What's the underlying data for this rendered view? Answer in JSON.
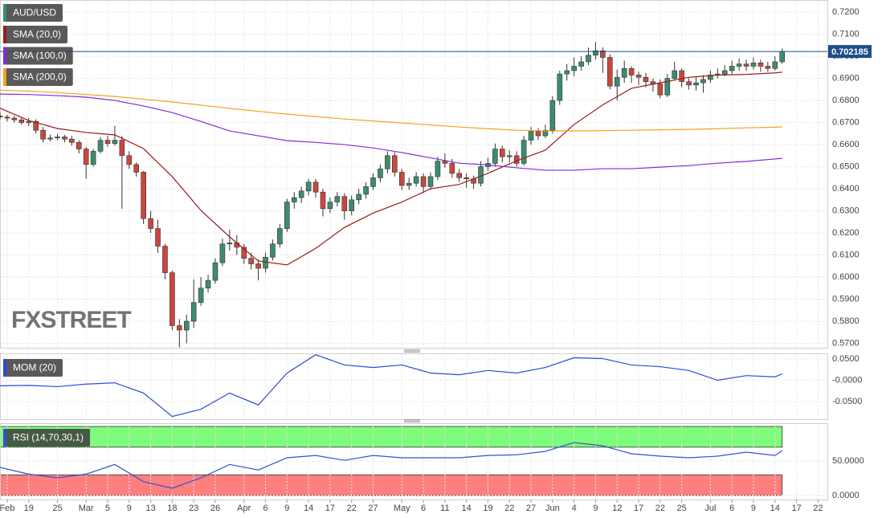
{
  "chart_data": [
    {
      "type": "candlestick",
      "title": "AUD/USD",
      "watermark": "FXSTREET",
      "up_color": "#3d8c6e",
      "down_color": "#c9473d",
      "xlim": [
        0,
        115.3
      ],
      "ylim": [
        0.568,
        0.7255
      ],
      "yticks": [
        {
          "value": 0.57,
          "label": "0.5700"
        },
        {
          "value": 0.58,
          "label": "0.5800"
        },
        {
          "value": 0.59,
          "label": "0.5900"
        },
        {
          "value": 0.6,
          "label": "0.6000"
        },
        {
          "value": 0.61,
          "label": "0.6100"
        },
        {
          "value": 0.62,
          "label": "0.6200"
        },
        {
          "value": 0.63,
          "label": "0.6300"
        },
        {
          "value": 0.64,
          "label": "0.6400"
        },
        {
          "value": 0.65,
          "label": "0.6500"
        },
        {
          "value": 0.66,
          "label": "0.6600"
        },
        {
          "value": 0.67,
          "label": "0.6700"
        },
        {
          "value": 0.68,
          "label": "0.6800"
        },
        {
          "value": 0.69,
          "label": "0.6900"
        },
        {
          "value": 0.7,
          "label": "0.7000"
        },
        {
          "value": 0.71,
          "label": "0.7100"
        },
        {
          "value": 0.72,
          "label": "0.7200"
        }
      ],
      "last_price": 0.702185,
      "last_price_color": "#1f4e8c",
      "open": [
        0.673,
        0.6725,
        0.672,
        0.6712,
        0.67,
        0.6705,
        0.6665,
        0.6625,
        0.663,
        0.6635,
        0.6625,
        0.661,
        0.658,
        0.651,
        0.657,
        0.662,
        0.6605,
        0.662,
        0.655,
        0.651,
        0.6475,
        0.6265,
        0.622,
        0.614,
        0.602,
        0.578,
        0.576,
        0.58,
        0.5885,
        0.595,
        0.5985,
        0.6065,
        0.615,
        0.6155,
        0.6135,
        0.6085,
        0.606,
        0.604,
        0.609,
        0.615,
        0.622,
        0.634,
        0.636,
        0.639,
        0.643,
        0.6385,
        0.631,
        0.634,
        0.6365,
        0.63,
        0.635,
        0.6375,
        0.641,
        0.645,
        0.649,
        0.655,
        0.6475,
        0.6415,
        0.6425,
        0.6455,
        0.641,
        0.6455,
        0.6525,
        0.6515,
        0.647,
        0.645,
        0.6445,
        0.6425,
        0.65,
        0.6515,
        0.658,
        0.6545,
        0.655,
        0.6515,
        0.662,
        0.666,
        0.664,
        0.6665,
        0.68,
        0.692,
        0.6935,
        0.6955,
        0.6975,
        0.7005,
        0.7025,
        0.6995,
        0.6865,
        0.6905,
        0.6945,
        0.6915,
        0.6905,
        0.6885,
        0.6875,
        0.6825,
        0.69,
        0.6935,
        0.6885,
        0.687,
        0.688,
        0.6895,
        0.6915,
        0.692,
        0.6935,
        0.6955,
        0.6965,
        0.6955,
        0.697,
        0.6955,
        0.6945,
        0.6975
      ],
      "high": [
        0.6745,
        0.6735,
        0.673,
        0.6725,
        0.672,
        0.6715,
        0.668,
        0.6645,
        0.665,
        0.6645,
        0.664,
        0.662,
        0.659,
        0.658,
        0.6635,
        0.664,
        0.6685,
        0.664,
        0.657,
        0.652,
        0.648,
        0.63,
        0.626,
        0.615,
        0.603,
        0.581,
        0.583,
        0.599,
        0.6,
        0.601,
        0.6085,
        0.6175,
        0.6215,
        0.619,
        0.615,
        0.611,
        0.608,
        0.611,
        0.617,
        0.624,
        0.6355,
        0.6385,
        0.641,
        0.6445,
        0.6445,
        0.64,
        0.636,
        0.6385,
        0.638,
        0.637,
        0.64,
        0.643,
        0.647,
        0.651,
        0.657,
        0.6565,
        0.649,
        0.645,
        0.6475,
        0.647,
        0.6475,
        0.6545,
        0.656,
        0.6535,
        0.649,
        0.647,
        0.646,
        0.6525,
        0.654,
        0.6605,
        0.6595,
        0.6575,
        0.657,
        0.664,
        0.668,
        0.6675,
        0.669,
        0.682,
        0.6935,
        0.6965,
        0.6995,
        0.7,
        0.704,
        0.7065,
        0.704,
        0.701,
        0.694,
        0.698,
        0.6955,
        0.693,
        0.6925,
        0.69,
        0.6895,
        0.692,
        0.6975,
        0.6945,
        0.69,
        0.6905,
        0.6915,
        0.6935,
        0.6945,
        0.696,
        0.698,
        0.699,
        0.6985,
        0.6995,
        0.6985,
        0.6975,
        0.7,
        0.7035
      ],
      "low": [
        0.6715,
        0.6705,
        0.67,
        0.669,
        0.6685,
        0.665,
        0.661,
        0.6615,
        0.662,
        0.661,
        0.6595,
        0.656,
        0.6445,
        0.65,
        0.656,
        0.659,
        0.6595,
        0.631,
        0.649,
        0.6455,
        0.624,
        0.62,
        0.611,
        0.599,
        0.576,
        0.5682,
        0.57,
        0.577,
        0.587,
        0.593,
        0.597,
        0.605,
        0.612,
        0.61,
        0.606,
        0.6035,
        0.5985,
        0.602,
        0.6075,
        0.6135,
        0.6205,
        0.631,
        0.6335,
        0.637,
        0.636,
        0.6275,
        0.629,
        0.632,
        0.626,
        0.628,
        0.633,
        0.6355,
        0.6395,
        0.643,
        0.647,
        0.6455,
        0.6395,
        0.6395,
        0.641,
        0.638,
        0.6395,
        0.644,
        0.6495,
        0.645,
        0.643,
        0.6405,
        0.64,
        0.641,
        0.648,
        0.65,
        0.652,
        0.652,
        0.65,
        0.6505,
        0.66,
        0.662,
        0.663,
        0.665,
        0.678,
        0.689,
        0.691,
        0.6935,
        0.696,
        0.6985,
        0.6925,
        0.685,
        0.68,
        0.688,
        0.688,
        0.687,
        0.686,
        0.684,
        0.681,
        0.6815,
        0.689,
        0.686,
        0.685,
        0.6845,
        0.6835,
        0.688,
        0.69,
        0.691,
        0.692,
        0.6935,
        0.6935,
        0.694,
        0.693,
        0.693,
        0.6935,
        0.6965
      ],
      "close": [
        0.6725,
        0.672,
        0.6712,
        0.67,
        0.6705,
        0.6665,
        0.6625,
        0.663,
        0.6635,
        0.6625,
        0.661,
        0.658,
        0.651,
        0.657,
        0.662,
        0.6605,
        0.662,
        0.655,
        0.651,
        0.6475,
        0.6265,
        0.622,
        0.614,
        0.602,
        0.578,
        0.576,
        0.58,
        0.5885,
        0.595,
        0.5985,
        0.6065,
        0.615,
        0.6155,
        0.6135,
        0.6085,
        0.606,
        0.604,
        0.609,
        0.615,
        0.622,
        0.634,
        0.636,
        0.639,
        0.643,
        0.6385,
        0.631,
        0.634,
        0.6365,
        0.63,
        0.635,
        0.6375,
        0.641,
        0.645,
        0.649,
        0.655,
        0.6475,
        0.6415,
        0.6425,
        0.6455,
        0.641,
        0.6455,
        0.6525,
        0.6515,
        0.647,
        0.645,
        0.6445,
        0.6425,
        0.65,
        0.6515,
        0.658,
        0.6545,
        0.655,
        0.6515,
        0.662,
        0.666,
        0.664,
        0.6665,
        0.68,
        0.692,
        0.6935,
        0.6955,
        0.6975,
        0.7005,
        0.7025,
        0.6995,
        0.6865,
        0.6905,
        0.6945,
        0.6915,
        0.6905,
        0.6885,
        0.6875,
        0.6825,
        0.69,
        0.6935,
        0.6885,
        0.687,
        0.688,
        0.6895,
        0.6915,
        0.692,
        0.6935,
        0.6955,
        0.6965,
        0.6955,
        0.697,
        0.6955,
        0.6945,
        0.6975,
        0.7022
      ],
      "series": [
        {
          "name": "SMA (20,0)",
          "color": "#9b1c1c",
          "x": [
            0,
            4,
            8,
            12,
            16,
            20,
            24,
            28,
            32,
            36,
            40,
            44,
            48,
            52,
            56,
            60,
            64,
            68,
            72,
            76,
            80,
            84,
            88,
            92,
            96,
            100,
            104,
            108,
            109
          ],
          "values": [
            0.6765,
            0.6709,
            0.6673,
            0.6655,
            0.6644,
            0.6582,
            0.6455,
            0.6302,
            0.6182,
            0.6073,
            0.6055,
            0.613,
            0.6225,
            0.629,
            0.634,
            0.64,
            0.642,
            0.647,
            0.6527,
            0.6575,
            0.6691,
            0.678,
            0.6855,
            0.688,
            0.6905,
            0.6915,
            0.6918,
            0.6925,
            0.6928
          ]
        },
        {
          "name": "SMA (100,0)",
          "color": "#7b2fd8",
          "x": [
            0,
            4,
            8,
            12,
            16,
            20,
            24,
            28,
            32,
            36,
            40,
            44,
            48,
            52,
            56,
            60,
            64,
            68,
            72,
            76,
            80,
            84,
            88,
            92,
            96,
            100,
            104,
            108,
            109
          ],
          "values": [
            0.6829,
            0.6827,
            0.6822,
            0.6815,
            0.68,
            0.6775,
            0.6745,
            0.6705,
            0.6662,
            0.664,
            0.6618,
            0.661,
            0.66,
            0.6585,
            0.6564,
            0.654,
            0.6516,
            0.6508,
            0.6495,
            0.6484,
            0.6484,
            0.6491,
            0.6491,
            0.6498,
            0.6505,
            0.6516,
            0.6524,
            0.6535,
            0.6538
          ]
        },
        {
          "name": "SMA (200,0)",
          "color": "#f5a020",
          "x": [
            0,
            4,
            8,
            12,
            16,
            20,
            24,
            28,
            32,
            36,
            40,
            44,
            48,
            52,
            56,
            60,
            64,
            68,
            72,
            76,
            80,
            84,
            88,
            92,
            96,
            100,
            104,
            108,
            109
          ],
          "values": [
            0.6847,
            0.6842,
            0.6836,
            0.6827,
            0.6818,
            0.6806,
            0.6793,
            0.6779,
            0.6764,
            0.6751,
            0.6738,
            0.6727,
            0.6716,
            0.6707,
            0.6698,
            0.6689,
            0.668,
            0.6672,
            0.6665,
            0.6662,
            0.6662,
            0.6663,
            0.6665,
            0.6667,
            0.6669,
            0.6672,
            0.6676,
            0.6679,
            0.668
          ]
        }
      ]
    },
    {
      "type": "line",
      "title": "MOM (20)",
      "color": "#2b4bd8",
      "xlim": [
        0,
        115.3
      ],
      "ylim": [
        -0.0915,
        0.0632
      ],
      "yticks": [
        {
          "value": 0.05,
          "label": "0.0500"
        },
        {
          "value": 0,
          "label": "-0.0000"
        },
        {
          "value": -0.05,
          "label": "-0.0500"
        }
      ],
      "x": [
        0,
        4,
        8,
        12,
        16,
        20,
        24,
        28,
        32,
        36,
        40,
        44,
        48,
        52,
        56,
        60,
        64,
        68,
        72,
        76,
        80,
        84,
        88,
        92,
        96,
        100,
        104,
        108,
        109
      ],
      "values": [
        -0.013,
        -0.012,
        -0.015,
        -0.009,
        -0.006,
        -0.03,
        -0.085,
        -0.068,
        -0.03,
        -0.058,
        0.017,
        0.06,
        0.036,
        0.03,
        0.036,
        0.017,
        0.013,
        0.023,
        0.017,
        0.03,
        0.053,
        0.051,
        0.036,
        0.032,
        0.023,
        0.0,
        0.011,
        0.008,
        0.015
      ]
    },
    {
      "type": "line",
      "title": "RSI (14,70,30,1)",
      "color": "#3355cc",
      "xlim": [
        0,
        115.3
      ],
      "ylim": [
        -5.8,
        104.7
      ],
      "yticks": [
        {
          "value": 50,
          "label": "50.0000"
        },
        {
          "value": 0,
          "label": "0.0000"
        }
      ],
      "bands": [
        {
          "from": 70,
          "to": 100,
          "color": "#7dfc7d"
        },
        {
          "from": 0,
          "to": 30,
          "color": "#ff7f7f"
        }
      ],
      "xticks": [
        {
          "value": 1,
          "label": "Feb"
        },
        {
          "value": 4,
          "label": "19"
        },
        {
          "value": 8,
          "label": "25"
        },
        {
          "value": 12,
          "label": "Mar"
        },
        {
          "value": 15,
          "label": "5"
        },
        {
          "value": 18,
          "label": "9"
        },
        {
          "value": 21,
          "label": "13"
        },
        {
          "value": 24,
          "label": "18"
        },
        {
          "value": 27,
          "label": "23"
        },
        {
          "value": 30,
          "label": "26"
        },
        {
          "value": 34,
          "label": "Apr"
        },
        {
          "value": 37,
          "label": "6"
        },
        {
          "value": 40,
          "label": "9"
        },
        {
          "value": 43,
          "label": "14"
        },
        {
          "value": 46,
          "label": "17"
        },
        {
          "value": 49,
          "label": "22"
        },
        {
          "value": 52,
          "label": "27"
        },
        {
          "value": 56,
          "label": "May"
        },
        {
          "value": 59,
          "label": "6"
        },
        {
          "value": 62,
          "label": "11"
        },
        {
          "value": 65,
          "label": "14"
        },
        {
          "value": 68,
          "label": "19"
        },
        {
          "value": 71,
          "label": "22"
        },
        {
          "value": 74,
          "label": "27"
        },
        {
          "value": 77,
          "label": "Jun"
        },
        {
          "value": 80,
          "label": "4"
        },
        {
          "value": 83,
          "label": "9"
        },
        {
          "value": 86,
          "label": "12"
        },
        {
          "value": 89,
          "label": "17"
        },
        {
          "value": 92,
          "label": "22"
        },
        {
          "value": 95,
          "label": "25"
        },
        {
          "value": 99,
          "label": "Jul"
        },
        {
          "value": 102,
          "label": "6"
        },
        {
          "value": 105,
          "label": "9"
        },
        {
          "value": 108,
          "label": "14"
        },
        {
          "value": 111,
          "label": "17"
        },
        {
          "value": 114,
          "label": "22"
        }
      ],
      "x": [
        0,
        4,
        8,
        12,
        16,
        20,
        24,
        28,
        32,
        36,
        40,
        44,
        48,
        52,
        56,
        60,
        64,
        68,
        72,
        76,
        80,
        84,
        88,
        92,
        96,
        100,
        104,
        108,
        109
      ],
      "values": [
        40.7,
        31,
        25.6,
        31,
        45,
        20,
        10.5,
        25.6,
        45,
        37,
        54.7,
        58,
        51,
        58,
        54.7,
        54.7,
        54.7,
        58,
        59,
        64,
        76.7,
        72,
        60.5,
        57,
        54.7,
        57,
        62.8,
        58,
        65
      ]
    }
  ]
}
